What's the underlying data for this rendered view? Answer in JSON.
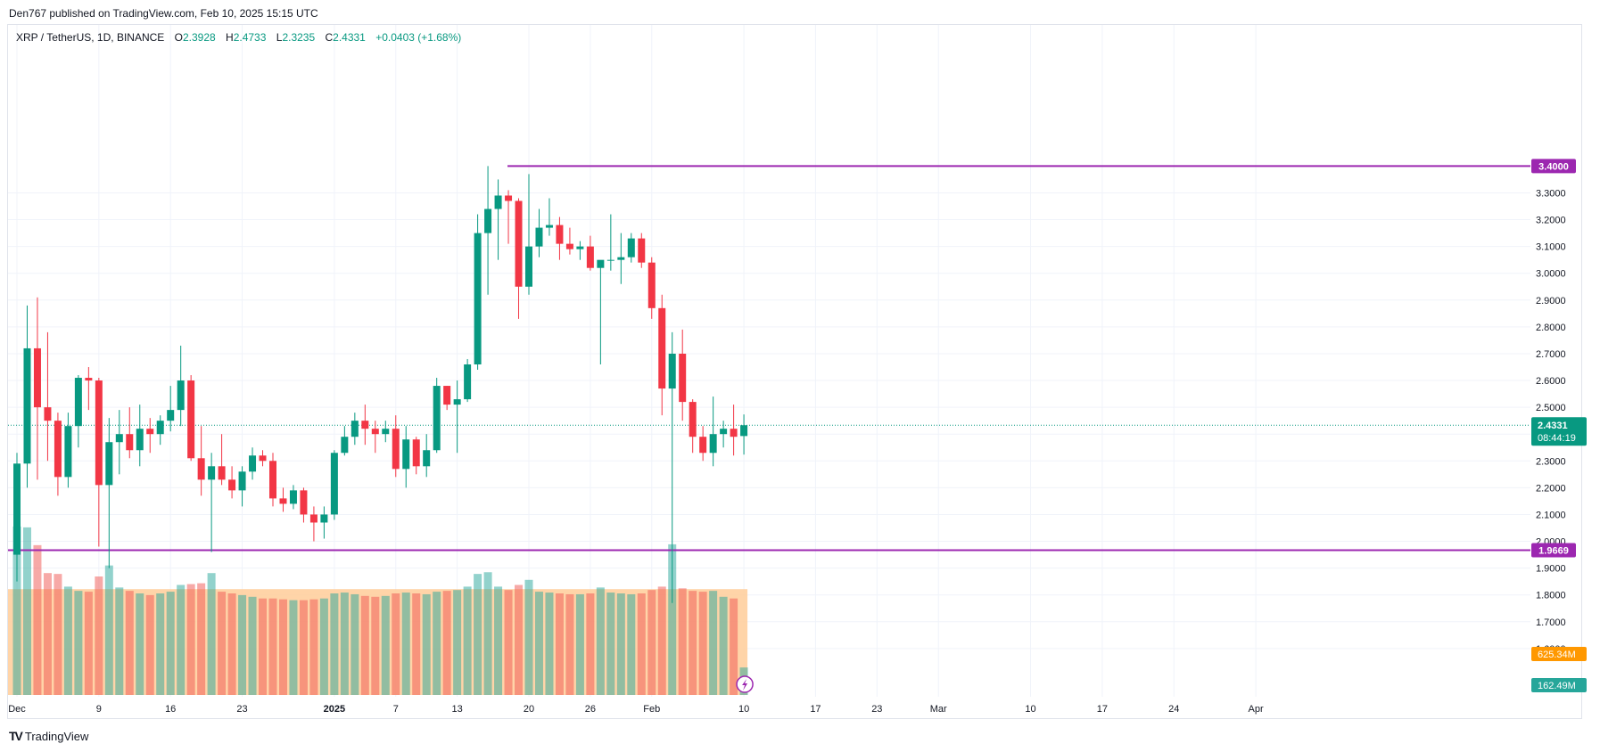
{
  "header": {
    "published_text": "Den767 published on TradingView.com, Feb 10, 2025 15:15 UTC"
  },
  "symbol_bar": {
    "symbol": "XRP / TetherUS, 1D, BINANCE",
    "open_label": "O",
    "open_value": "2.3928",
    "high_label": "H",
    "high_value": "2.4733",
    "low_label": "L",
    "low_value": "2.3235",
    "close_label": "C",
    "close_value": "2.4331",
    "change_value": "+0.0403 (+1.68%)"
  },
  "footer": {
    "brand": "TradingView",
    "mark": "TV"
  },
  "colors": {
    "up": "#089981",
    "down": "#f23645",
    "level_line": "#9c27b0",
    "last_price": "#089981",
    "volume_ma": "#ff9800",
    "volume_badge": "#26a69a",
    "up_vol": "#26a69a",
    "down_vol": "#ef5350",
    "ma_fill": "#ffcc99",
    "grid": "#f0f3fa"
  },
  "icons": {
    "lightning": "lightning-icon"
  },
  "chart_data": {
    "type": "candlestick",
    "ylim": [
      1.42,
      3.88
    ],
    "y_ticks": [
      "3.3000",
      "3.2000",
      "3.1000",
      "3.0000",
      "2.9000",
      "2.8000",
      "2.7000",
      "2.6000",
      "2.5000",
      "2.4000",
      "2.3000",
      "2.2000",
      "2.1000",
      "2.0000",
      "1.9000",
      "1.8000",
      "1.7000",
      "1.6000"
    ],
    "x_ticks": [
      {
        "label": "Dec",
        "day": 0
      },
      {
        "label": "9",
        "day": 8
      },
      {
        "label": "16",
        "day": 15
      },
      {
        "label": "23",
        "day": 22
      },
      {
        "label": "2025",
        "day": 31
      },
      {
        "label": "7",
        "day": 37
      },
      {
        "label": "13",
        "day": 43
      },
      {
        "label": "20",
        "day": 50
      },
      {
        "label": "26",
        "day": 56
      },
      {
        "label": "Feb",
        "day": 62
      },
      {
        "label": "10",
        "day": 71
      },
      {
        "label": "17",
        "day": 78
      },
      {
        "label": "23",
        "day": 84
      },
      {
        "label": "Mar",
        "day": 90
      },
      {
        "label": "10",
        "day": 99
      },
      {
        "label": "17",
        "day": 106
      },
      {
        "label": "24",
        "day": 113
      },
      {
        "label": "Apr",
        "day": 121
      }
    ],
    "levels": [
      {
        "value": 3.4,
        "label": "3.4000"
      },
      {
        "value": 1.9669,
        "label": "1.9669"
      }
    ],
    "last_price": {
      "value": 2.4331,
      "label": "2.4331",
      "countdown": "08:44:19"
    },
    "volume_ma_label": "625.34M",
    "volume_last_label": "162.49M",
    "volume_scale_max": 1000,
    "volume_ma_value": 625.34,
    "candles": [
      {
        "o": 1.95,
        "h": 2.33,
        "l": 1.85,
        "c": 2.29,
        "v": 995
      },
      {
        "o": 2.29,
        "h": 2.88,
        "l": 2.2,
        "c": 2.72,
        "v": 990
      },
      {
        "o": 2.72,
        "h": 2.91,
        "l": 2.23,
        "c": 2.5,
        "v": 885
      },
      {
        "o": 2.5,
        "h": 2.78,
        "l": 2.3,
        "c": 2.45,
        "v": 720
      },
      {
        "o": 2.45,
        "h": 2.48,
        "l": 2.17,
        "c": 2.24,
        "v": 715
      },
      {
        "o": 2.24,
        "h": 2.48,
        "l": 2.2,
        "c": 2.43,
        "v": 640
      },
      {
        "o": 2.43,
        "h": 2.62,
        "l": 2.35,
        "c": 2.61,
        "v": 615
      },
      {
        "o": 2.61,
        "h": 2.65,
        "l": 2.49,
        "c": 2.6,
        "v": 610
      },
      {
        "o": 2.6,
        "h": 2.61,
        "l": 1.98,
        "c": 2.21,
        "v": 700
      },
      {
        "o": 2.21,
        "h": 2.46,
        "l": 1.9,
        "c": 2.37,
        "v": 765
      },
      {
        "o": 2.37,
        "h": 2.49,
        "l": 2.25,
        "c": 2.4,
        "v": 635
      },
      {
        "o": 2.4,
        "h": 2.5,
        "l": 2.31,
        "c": 2.34,
        "v": 615
      },
      {
        "o": 2.34,
        "h": 2.51,
        "l": 2.28,
        "c": 2.42,
        "v": 600
      },
      {
        "o": 2.42,
        "h": 2.46,
        "l": 2.33,
        "c": 2.4,
        "v": 590
      },
      {
        "o": 2.4,
        "h": 2.47,
        "l": 2.36,
        "c": 2.45,
        "v": 600
      },
      {
        "o": 2.45,
        "h": 2.58,
        "l": 2.41,
        "c": 2.49,
        "v": 610
      },
      {
        "o": 2.49,
        "h": 2.73,
        "l": 2.43,
        "c": 2.6,
        "v": 650
      },
      {
        "o": 2.6,
        "h": 2.62,
        "l": 2.3,
        "c": 2.31,
        "v": 655
      },
      {
        "o": 2.31,
        "h": 2.43,
        "l": 2.17,
        "c": 2.23,
        "v": 660
      },
      {
        "o": 2.23,
        "h": 2.33,
        "l": 1.96,
        "c": 2.28,
        "v": 720
      },
      {
        "o": 2.28,
        "h": 2.4,
        "l": 2.21,
        "c": 2.23,
        "v": 610
      },
      {
        "o": 2.23,
        "h": 2.28,
        "l": 2.16,
        "c": 2.19,
        "v": 600
      },
      {
        "o": 2.19,
        "h": 2.28,
        "l": 2.13,
        "c": 2.26,
        "v": 590
      },
      {
        "o": 2.26,
        "h": 2.35,
        "l": 2.23,
        "c": 2.32,
        "v": 580
      },
      {
        "o": 2.32,
        "h": 2.34,
        "l": 2.28,
        "c": 2.3,
        "v": 570
      },
      {
        "o": 2.3,
        "h": 2.33,
        "l": 2.13,
        "c": 2.16,
        "v": 570
      },
      {
        "o": 2.16,
        "h": 2.2,
        "l": 2.11,
        "c": 2.14,
        "v": 565
      },
      {
        "o": 2.14,
        "h": 2.21,
        "l": 2.12,
        "c": 2.19,
        "v": 560
      },
      {
        "o": 2.19,
        "h": 2.2,
        "l": 2.07,
        "c": 2.1,
        "v": 560
      },
      {
        "o": 2.1,
        "h": 2.13,
        "l": 2.0,
        "c": 2.07,
        "v": 565
      },
      {
        "o": 2.07,
        "h": 2.13,
        "l": 2.01,
        "c": 2.1,
        "v": 570
      },
      {
        "o": 2.1,
        "h": 2.34,
        "l": 2.08,
        "c": 2.33,
        "v": 600
      },
      {
        "o": 2.33,
        "h": 2.43,
        "l": 2.32,
        "c": 2.39,
        "v": 605
      },
      {
        "o": 2.39,
        "h": 2.48,
        "l": 2.36,
        "c": 2.45,
        "v": 595
      },
      {
        "o": 2.45,
        "h": 2.51,
        "l": 2.36,
        "c": 2.42,
        "v": 585
      },
      {
        "o": 2.42,
        "h": 2.45,
        "l": 2.33,
        "c": 2.4,
        "v": 580
      },
      {
        "o": 2.4,
        "h": 2.45,
        "l": 2.37,
        "c": 2.42,
        "v": 585
      },
      {
        "o": 2.42,
        "h": 2.47,
        "l": 2.24,
        "c": 2.27,
        "v": 600
      },
      {
        "o": 2.27,
        "h": 2.43,
        "l": 2.2,
        "c": 2.38,
        "v": 605
      },
      {
        "o": 2.38,
        "h": 2.39,
        "l": 2.25,
        "c": 2.28,
        "v": 600
      },
      {
        "o": 2.28,
        "h": 2.4,
        "l": 2.24,
        "c": 2.34,
        "v": 595
      },
      {
        "o": 2.34,
        "h": 2.61,
        "l": 2.33,
        "c": 2.58,
        "v": 610
      },
      {
        "o": 2.58,
        "h": 2.58,
        "l": 2.49,
        "c": 2.51,
        "v": 615
      },
      {
        "o": 2.51,
        "h": 2.6,
        "l": 2.33,
        "c": 2.53,
        "v": 620
      },
      {
        "o": 2.53,
        "h": 2.68,
        "l": 2.52,
        "c": 2.66,
        "v": 640
      },
      {
        "o": 2.66,
        "h": 3.22,
        "l": 2.64,
        "c": 3.15,
        "v": 715
      },
      {
        "o": 3.15,
        "h": 3.4,
        "l": 2.92,
        "c": 3.24,
        "v": 725
      },
      {
        "o": 3.24,
        "h": 3.35,
        "l": 3.05,
        "c": 3.29,
        "v": 640
      },
      {
        "o": 3.29,
        "h": 3.31,
        "l": 3.11,
        "c": 3.27,
        "v": 620
      },
      {
        "o": 3.27,
        "h": 3.28,
        "l": 2.83,
        "c": 2.95,
        "v": 650
      },
      {
        "o": 2.95,
        "h": 3.37,
        "l": 2.92,
        "c": 3.1,
        "v": 680
      },
      {
        "o": 3.1,
        "h": 3.24,
        "l": 3.06,
        "c": 3.17,
        "v": 610
      },
      {
        "o": 3.17,
        "h": 3.28,
        "l": 3.14,
        "c": 3.18,
        "v": 605
      },
      {
        "o": 3.18,
        "h": 3.21,
        "l": 3.05,
        "c": 3.11,
        "v": 600
      },
      {
        "o": 3.11,
        "h": 3.17,
        "l": 3.07,
        "c": 3.09,
        "v": 595
      },
      {
        "o": 3.09,
        "h": 3.12,
        "l": 3.05,
        "c": 3.1,
        "v": 595
      },
      {
        "o": 3.1,
        "h": 3.14,
        "l": 3.01,
        "c": 3.02,
        "v": 600
      },
      {
        "o": 3.02,
        "h": 3.04,
        "l": 2.66,
        "c": 3.05,
        "v": 635
      },
      {
        "o": 3.05,
        "h": 3.22,
        "l": 3.01,
        "c": 3.05,
        "v": 605
      },
      {
        "o": 3.05,
        "h": 3.15,
        "l": 2.96,
        "c": 3.06,
        "v": 600
      },
      {
        "o": 3.06,
        "h": 3.15,
        "l": 3.04,
        "c": 3.13,
        "v": 595
      },
      {
        "o": 3.13,
        "h": 3.15,
        "l": 3.02,
        "c": 3.04,
        "v": 600
      },
      {
        "o": 3.04,
        "h": 3.06,
        "l": 2.83,
        "c": 2.87,
        "v": 620
      },
      {
        "o": 2.87,
        "h": 2.92,
        "l": 2.47,
        "c": 2.57,
        "v": 640
      },
      {
        "o": 2.57,
        "h": 2.78,
        "l": 1.77,
        "c": 2.7,
        "v": 890
      },
      {
        "o": 2.7,
        "h": 2.79,
        "l": 2.45,
        "c": 2.52,
        "v": 630
      },
      {
        "o": 2.52,
        "h": 2.53,
        "l": 2.33,
        "c": 2.39,
        "v": 615
      },
      {
        "o": 2.39,
        "h": 2.43,
        "l": 2.3,
        "c": 2.33,
        "v": 610
      },
      {
        "o": 2.33,
        "h": 2.54,
        "l": 2.28,
        "c": 2.4,
        "v": 615
      },
      {
        "o": 2.4,
        "h": 2.45,
        "l": 2.35,
        "c": 2.42,
        "v": 580
      },
      {
        "o": 2.42,
        "h": 2.51,
        "l": 2.32,
        "c": 2.39,
        "v": 570
      },
      {
        "o": 2.3928,
        "h": 2.4733,
        "l": 2.3235,
        "c": 2.4331,
        "v": 162.49
      }
    ]
  }
}
